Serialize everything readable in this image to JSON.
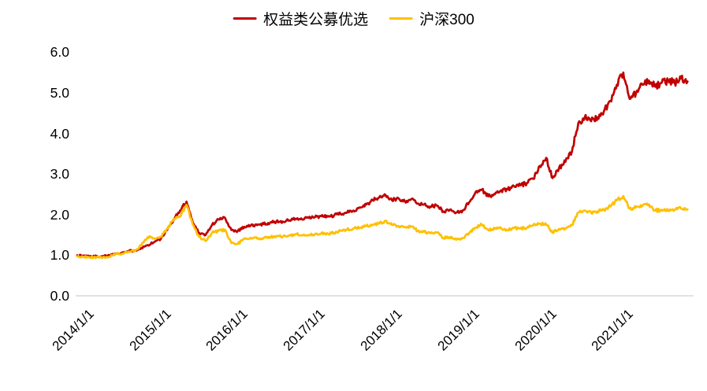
{
  "legend": {
    "position": "top-center"
  },
  "axis_colors": {
    "baseline": "#D9D9D9",
    "tick_text": "#000000"
  },
  "chart_data": {
    "type": "line",
    "title": "",
    "xlabel": "",
    "ylabel": "",
    "x_start": "2014/01",
    "x_step": "1 month",
    "x_tick_labels": [
      "2014/1/1",
      "2015/1/1",
      "2016/1/1",
      "2017/1/1",
      "2018/1/1",
      "2019/1/1",
      "2020/1/1",
      "2021/1/1"
    ],
    "y_tick_labels": [
      "0.0",
      "1.0",
      "2.0",
      "3.0",
      "4.0",
      "5.0",
      "6.0"
    ],
    "ylim": [
      0.0,
      6.0
    ],
    "grid": false,
    "legend_position": "top",
    "series": [
      {
        "name": "权益类公募优选",
        "color": "#C00000",
        "monthly_values": [
          1.0,
          0.99,
          0.98,
          0.97,
          0.98,
          1.0,
          1.04,
          1.07,
          1.1,
          1.12,
          1.18,
          1.25,
          1.33,
          1.4,
          1.62,
          1.88,
          2.1,
          2.32,
          1.8,
          1.55,
          1.5,
          1.75,
          1.88,
          1.92,
          1.62,
          1.6,
          1.7,
          1.73,
          1.74,
          1.77,
          1.8,
          1.83,
          1.83,
          1.86,
          1.9,
          1.88,
          1.92,
          1.94,
          1.96,
          1.95,
          1.98,
          2.02,
          2.05,
          2.1,
          2.18,
          2.25,
          2.35,
          2.42,
          2.48,
          2.35,
          2.4,
          2.33,
          2.38,
          2.27,
          2.25,
          2.2,
          2.22,
          2.08,
          2.12,
          2.05,
          2.1,
          2.3,
          2.55,
          2.62,
          2.45,
          2.5,
          2.6,
          2.62,
          2.7,
          2.72,
          2.78,
          2.88,
          3.2,
          3.4,
          2.9,
          3.15,
          3.3,
          3.55,
          4.25,
          4.4,
          4.3,
          4.4,
          4.55,
          4.8,
          5.2,
          5.5,
          4.85,
          5.0,
          5.2,
          5.3,
          5.15,
          5.25,
          5.3,
          5.25,
          5.35,
          5.28
        ]
      },
      {
        "name": "沪深300",
        "color": "#FFC000",
        "monthly_values": [
          0.97,
          0.96,
          0.95,
          0.95,
          0.95,
          0.96,
          1.03,
          1.04,
          1.09,
          1.11,
          1.25,
          1.45,
          1.42,
          1.45,
          1.65,
          1.9,
          1.95,
          2.24,
          1.75,
          1.45,
          1.35,
          1.55,
          1.6,
          1.63,
          1.3,
          1.28,
          1.4,
          1.43,
          1.41,
          1.43,
          1.45,
          1.47,
          1.46,
          1.48,
          1.52,
          1.49,
          1.5,
          1.52,
          1.54,
          1.53,
          1.55,
          1.6,
          1.63,
          1.66,
          1.68,
          1.72,
          1.75,
          1.78,
          1.85,
          1.74,
          1.72,
          1.7,
          1.71,
          1.6,
          1.58,
          1.54,
          1.56,
          1.42,
          1.45,
          1.38,
          1.42,
          1.55,
          1.68,
          1.75,
          1.62,
          1.65,
          1.66,
          1.62,
          1.67,
          1.66,
          1.67,
          1.74,
          1.78,
          1.76,
          1.55,
          1.65,
          1.66,
          1.74,
          2.05,
          2.1,
          2.05,
          2.08,
          2.12,
          2.2,
          2.35,
          2.46,
          2.15,
          2.18,
          2.22,
          2.25,
          2.1,
          2.12,
          2.1,
          2.12,
          2.15,
          2.13
        ]
      }
    ]
  }
}
